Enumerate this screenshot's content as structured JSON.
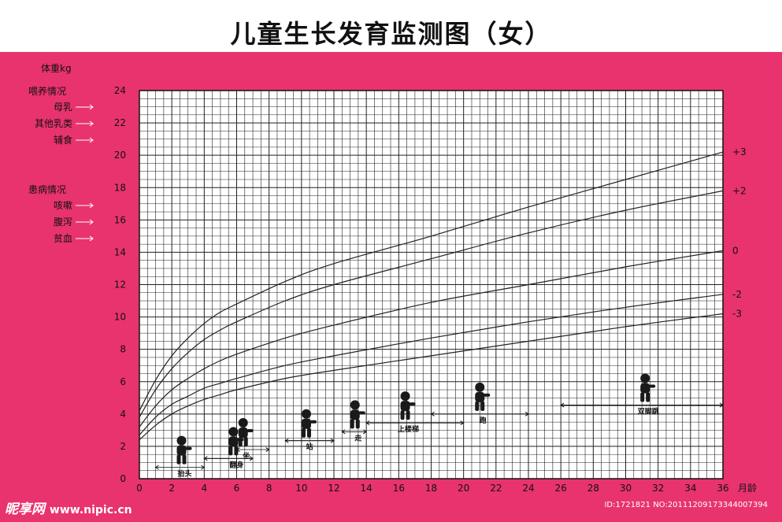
{
  "title": "儿童生长发育监测图（女）",
  "left_panel": {
    "weight_label": "体重kg",
    "feeding_header": "喂养情况",
    "feeding_items": [
      "母乳",
      "其他乳类",
      "辅食"
    ],
    "illness_header": "患病情况",
    "illness_items": [
      "咳嗽",
      "腹泻",
      "贫血"
    ]
  },
  "colors": {
    "background": "#e8336f",
    "grid_fill": "#ffffff",
    "grid_line": "#222222",
    "curve": "#222222"
  },
  "chart_data": {
    "type": "line",
    "title": "儿童生长发育监测图（女）",
    "xlabel": "月龄",
    "ylabel": "体重kg",
    "xlim": [
      0,
      36
    ],
    "ylim": [
      0,
      24
    ],
    "x_ticks": [
      0,
      2,
      4,
      6,
      8,
      10,
      12,
      14,
      16,
      18,
      20,
      22,
      24,
      26,
      28,
      30,
      32,
      34,
      36
    ],
    "y_ticks": [
      0,
      2,
      4,
      6,
      8,
      10,
      12,
      14,
      16,
      18,
      20,
      22,
      24
    ],
    "grid": true,
    "series": [
      {
        "name": "+3",
        "x": [
          0,
          1,
          2,
          3,
          4,
          5,
          6,
          9,
          12,
          18,
          24,
          30,
          36
        ],
        "y": [
          4.2,
          6.1,
          7.6,
          8.7,
          9.6,
          10.3,
          10.8,
          12.2,
          13.3,
          15.0,
          16.8,
          18.5,
          20.2
        ]
      },
      {
        "name": "+2",
        "x": [
          0,
          1,
          2,
          3,
          4,
          5,
          6,
          9,
          12,
          18,
          24,
          30,
          36
        ],
        "y": [
          3.8,
          5.5,
          6.8,
          7.8,
          8.6,
          9.2,
          9.7,
          11.0,
          12.0,
          13.6,
          15.2,
          16.6,
          17.8
        ]
      },
      {
        "name": "0",
        "x": [
          0,
          1,
          2,
          3,
          4,
          5,
          6,
          9,
          12,
          18,
          24,
          30,
          36
        ],
        "y": [
          3.2,
          4.5,
          5.5,
          6.2,
          6.8,
          7.3,
          7.7,
          8.7,
          9.5,
          10.9,
          12.0,
          13.1,
          14.1
        ]
      },
      {
        "name": "-2",
        "x": [
          0,
          1,
          2,
          3,
          4,
          5,
          6,
          9,
          12,
          18,
          24,
          30,
          36
        ],
        "y": [
          2.7,
          3.8,
          4.6,
          5.1,
          5.6,
          5.9,
          6.2,
          7.0,
          7.6,
          8.7,
          9.7,
          10.6,
          11.4
        ]
      },
      {
        "name": "-3",
        "x": [
          0,
          1,
          2,
          3,
          4,
          5,
          6,
          9,
          12,
          18,
          24,
          30,
          36
        ],
        "y": [
          2.4,
          3.3,
          4.0,
          4.5,
          4.9,
          5.2,
          5.5,
          6.2,
          6.7,
          7.6,
          8.5,
          9.4,
          10.2
        ]
      }
    ],
    "milestones": [
      {
        "label": "抬头",
        "from": 1,
        "to": 4,
        "figure_x": 2.6
      },
      {
        "label": "翻身",
        "from": 4,
        "to": 7,
        "figure_x": 5.8
      },
      {
        "label": "坐",
        "from": 6,
        "to": 8,
        "figure_x": 6.4
      },
      {
        "label": "站",
        "from": 9,
        "to": 12,
        "figure_x": 10.3
      },
      {
        "label": "走",
        "from": 12.5,
        "to": 14,
        "figure_x": 13.3
      },
      {
        "label": "上楼梯",
        "from": 14,
        "to": 20,
        "figure_x": 16.4
      },
      {
        "label": "跑",
        "from": 18,
        "to": 24,
        "figure_x": 21.0
      },
      {
        "label": "双脚跳",
        "from": 26,
        "to": 36,
        "figure_x": 31.2
      }
    ]
  },
  "watermark": {
    "logo": "昵享网",
    "site": "www.nipic.cn",
    "id_text": "ID:1721821 NO:20111209173344007394"
  }
}
